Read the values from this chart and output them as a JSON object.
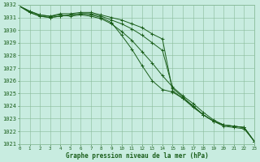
{
  "x": [
    0,
    1,
    2,
    3,
    4,
    5,
    6,
    7,
    8,
    9,
    10,
    11,
    12,
    13,
    14,
    15,
    16,
    17,
    18,
    19,
    20,
    21,
    22,
    23
  ],
  "line1": [
    1031.9,
    1031.5,
    1031.2,
    1031.1,
    1031.2,
    1031.1,
    1031.2,
    1031.1,
    1030.9,
    1030.5,
    1029.9,
    1029.2,
    1028.3,
    1027.4,
    1026.4,
    1025.5,
    1024.8,
    1024.2,
    1023.5,
    1022.9,
    1022.5,
    1022.4,
    1022.3,
    1021.2
  ],
  "line2": [
    1031.9,
    1031.4,
    1031.1,
    1031.0,
    1031.1,
    1031.2,
    1031.3,
    1031.2,
    1031.0,
    1030.6,
    1029.6,
    1028.5,
    1027.2,
    1026.0,
    1025.3,
    1025.1,
    1024.6,
    1024.0,
    1023.3,
    1022.8,
    1022.4,
    1022.3,
    1022.2,
    1021.2
  ],
  "line3": [
    1031.9,
    1031.4,
    1031.1,
    1031.0,
    1031.1,
    1031.2,
    1031.3,
    1031.3,
    1031.1,
    1030.8,
    1030.5,
    1030.1,
    1029.6,
    1029.0,
    1028.4,
    1025.4,
    1024.7,
    1024.0,
    1023.3,
    1022.8,
    1022.5,
    1022.4,
    1022.3,
    1021.2
  ],
  "line4": [
    1031.9,
    1031.5,
    1031.2,
    1031.1,
    1031.3,
    1031.3,
    1031.4,
    1031.4,
    1031.2,
    1031.0,
    1030.8,
    1030.5,
    1030.2,
    1029.7,
    1029.3,
    1025.2,
    1024.6,
    1023.9,
    1023.3,
    1022.8,
    1022.5,
    1022.4,
    1022.3,
    1021.2
  ],
  "bg_color": "#c8ece0",
  "grid_color": "#88bb99",
  "line_color": "#1a5e1a",
  "xlabel": "Graphe pression niveau de la mer (hPa)",
  "ylim_min": 1021,
  "ylim_max": 1032,
  "xlim_min": 0,
  "xlim_max": 23
}
